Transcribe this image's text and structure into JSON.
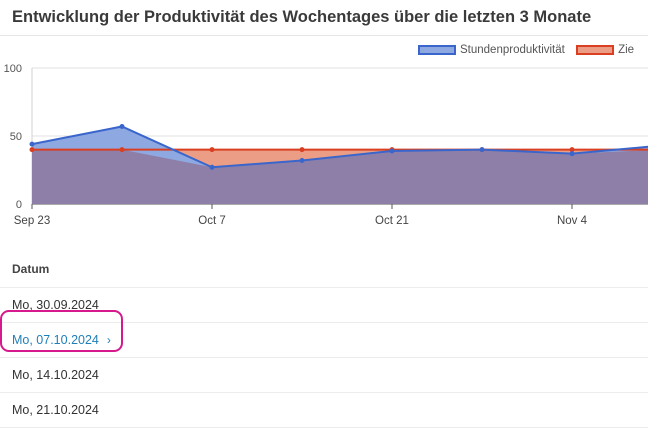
{
  "page": {
    "title": "Entwicklung der Produktivität des Wochentages über die letzten 3 Monate"
  },
  "chart_data": {
    "type": "area",
    "x": [
      "2024-09-23",
      "2024-09-30",
      "2024-10-07",
      "2024-10-14",
      "2024-10-21",
      "2024-10-28",
      "2024-11-04",
      "2024-11-11"
    ],
    "series": [
      {
        "name": "Stundenproduktivität",
        "values": [
          44,
          57,
          27,
          32,
          39,
          40,
          37,
          43
        ],
        "color": "#3a66cc",
        "fill": "#8ea8e2"
      },
      {
        "name": "Zie",
        "values": [
          40,
          40,
          40,
          40,
          40,
          40,
          40,
          40
        ],
        "color": "#d93f20",
        "fill": "#ec9d85"
      }
    ],
    "overlap_fill": "#8e7fa8",
    "x_ticks": [
      {
        "date": "2024-09-23",
        "label": "Sep 23"
      },
      {
        "date": "2024-10-07",
        "label": "Oct 7"
      },
      {
        "date": "2024-10-21",
        "label": "Oct 21"
      },
      {
        "date": "2024-11-04",
        "label": "Nov 4"
      }
    ],
    "y_ticks": [
      0,
      50,
      100
    ],
    "ylim": [
      0,
      100
    ],
    "grid": true,
    "legend": "top-right"
  },
  "table": {
    "header": "Datum",
    "rows": [
      {
        "label": "Mo, 30.09.2024",
        "link": false
      },
      {
        "label": "Mo, 07.10.2024",
        "link": true,
        "chevron": "›",
        "highlighted": true
      },
      {
        "label": "Mo, 14.10.2024",
        "link": false
      },
      {
        "label": "Mo, 21.10.2024",
        "link": false
      }
    ]
  }
}
